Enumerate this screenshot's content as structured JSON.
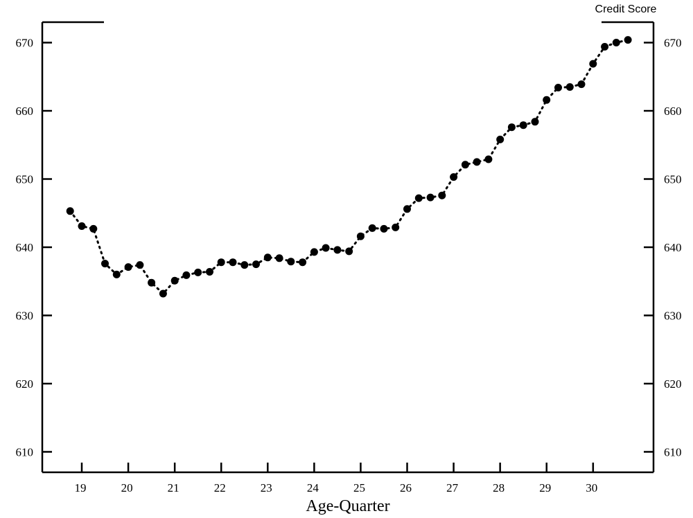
{
  "chart_data": {
    "type": "line",
    "title": "",
    "xlabel": "Age-Quarter",
    "ylabel": "",
    "xlim": [
      18.15,
      31.3
    ],
    "ylim": [
      607,
      673
    ],
    "x_ticks": [
      19,
      20,
      21,
      22,
      23,
      24,
      25,
      26,
      27,
      28,
      29,
      30
    ],
    "x_tick_labels": [
      "19",
      "20",
      "21",
      "22",
      "23",
      "24",
      "25",
      "26",
      "27",
      "28",
      "29",
      "30"
    ],
    "y_ticks": [
      610,
      620,
      630,
      640,
      650,
      660,
      670
    ],
    "y_tick_labels": [
      "610",
      "620",
      "630",
      "640",
      "650",
      "660",
      "670"
    ],
    "grid": false,
    "legend_position": "top-right",
    "marker_color": "#000000",
    "line_style": "dotted",
    "series": [
      {
        "name": "Credit Score",
        "x": [
          18.75,
          19.0,
          19.25,
          19.5,
          19.75,
          20.0,
          20.25,
          20.5,
          20.75,
          21.0,
          21.25,
          21.5,
          21.75,
          22.0,
          22.25,
          22.5,
          22.75,
          23.0,
          23.25,
          23.5,
          23.75,
          24.0,
          24.25,
          24.5,
          24.75,
          25.0,
          25.25,
          25.5,
          25.75,
          26.0,
          26.25,
          26.5,
          26.75,
          27.0,
          27.25,
          27.5,
          27.75,
          28.0,
          28.25,
          28.5,
          28.75,
          29.0,
          29.25,
          29.5,
          29.75,
          30.0,
          30.25,
          30.5,
          30.75
        ],
        "values": [
          645.3,
          643.1,
          642.7,
          637.6,
          636.0,
          637.1,
          637.4,
          634.8,
          633.2,
          635.1,
          635.9,
          636.3,
          636.4,
          637.8,
          637.8,
          637.4,
          637.5,
          638.5,
          638.4,
          637.9,
          637.8,
          639.3,
          639.9,
          639.6,
          639.4,
          641.6,
          642.8,
          642.7,
          642.9,
          645.6,
          647.2,
          647.3,
          647.6,
          650.3,
          652.1,
          652.5,
          652.9,
          655.8,
          657.6,
          657.9,
          658.4,
          661.6,
          663.4,
          663.5,
          663.9,
          666.9,
          669.4,
          670.0,
          670.4
        ]
      }
    ]
  }
}
